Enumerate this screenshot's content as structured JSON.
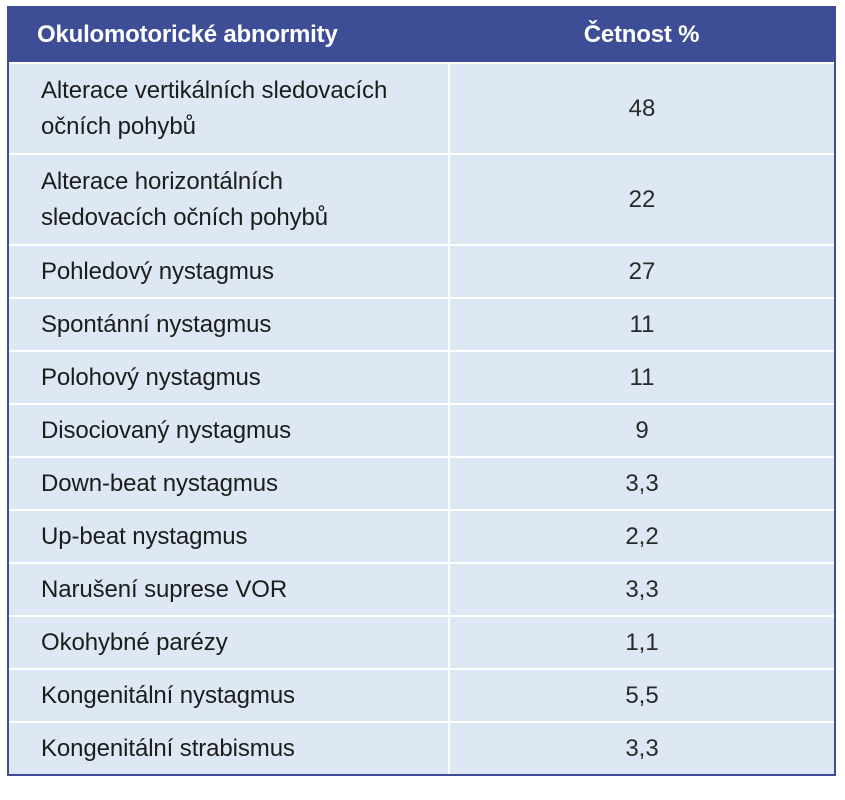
{
  "table": {
    "headers": [
      "Okulomotorické abnormity",
      "Četnost %"
    ],
    "rows": [
      {
        "name": "Alterace vertikálních sledovacích očních pohybů",
        "value": "48"
      },
      {
        "name": "Alterace horizontálních sledovacích očních pohybů",
        "value": "22"
      },
      {
        "name": "Pohledový nystagmus",
        "value": "27"
      },
      {
        "name": "Spontánní nystagmus",
        "value": "11"
      },
      {
        "name": "Polohový nystagmus",
        "value": "11"
      },
      {
        "name": "Disociovaný nystagmus",
        "value": "9"
      },
      {
        "name": "Down-beat nystagmus",
        "value": "3,3"
      },
      {
        "name": "Up-beat nystagmus",
        "value": "2,2"
      },
      {
        "name": "Narušení suprese VOR",
        "value": "3,3"
      },
      {
        "name": "Okohybné parézy",
        "value": "1,1"
      },
      {
        "name": "Kongenitální nystagmus",
        "value": "5,5"
      },
      {
        "name": "Kongenitální strabismus",
        "value": "3,3"
      }
    ]
  },
  "colors": {
    "header_bg": "#3e4e96",
    "row_bg": "#dde8f4",
    "border": "#3d4c93"
  }
}
